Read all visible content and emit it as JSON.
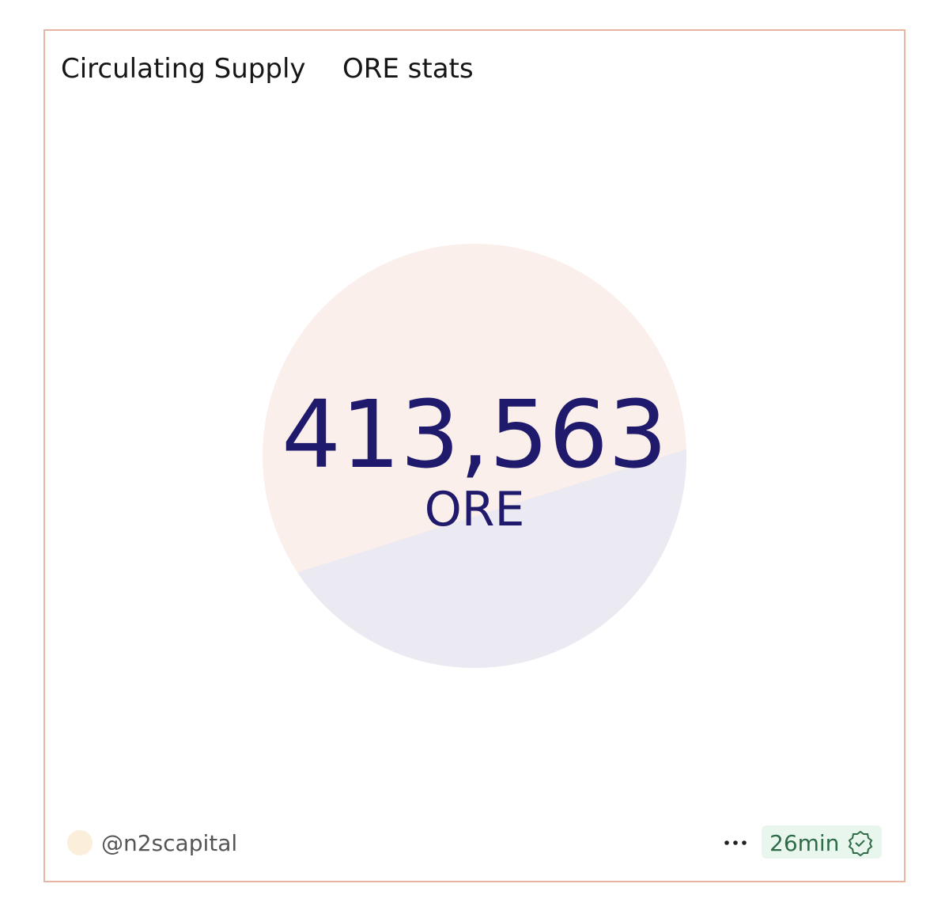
{
  "header": {
    "title": "Circulating Supply",
    "subtitle": "ORE stats"
  },
  "counter": {
    "value": "413,563",
    "unit": "ORE"
  },
  "footer": {
    "author": "@n2scapital",
    "age": "26min"
  }
}
